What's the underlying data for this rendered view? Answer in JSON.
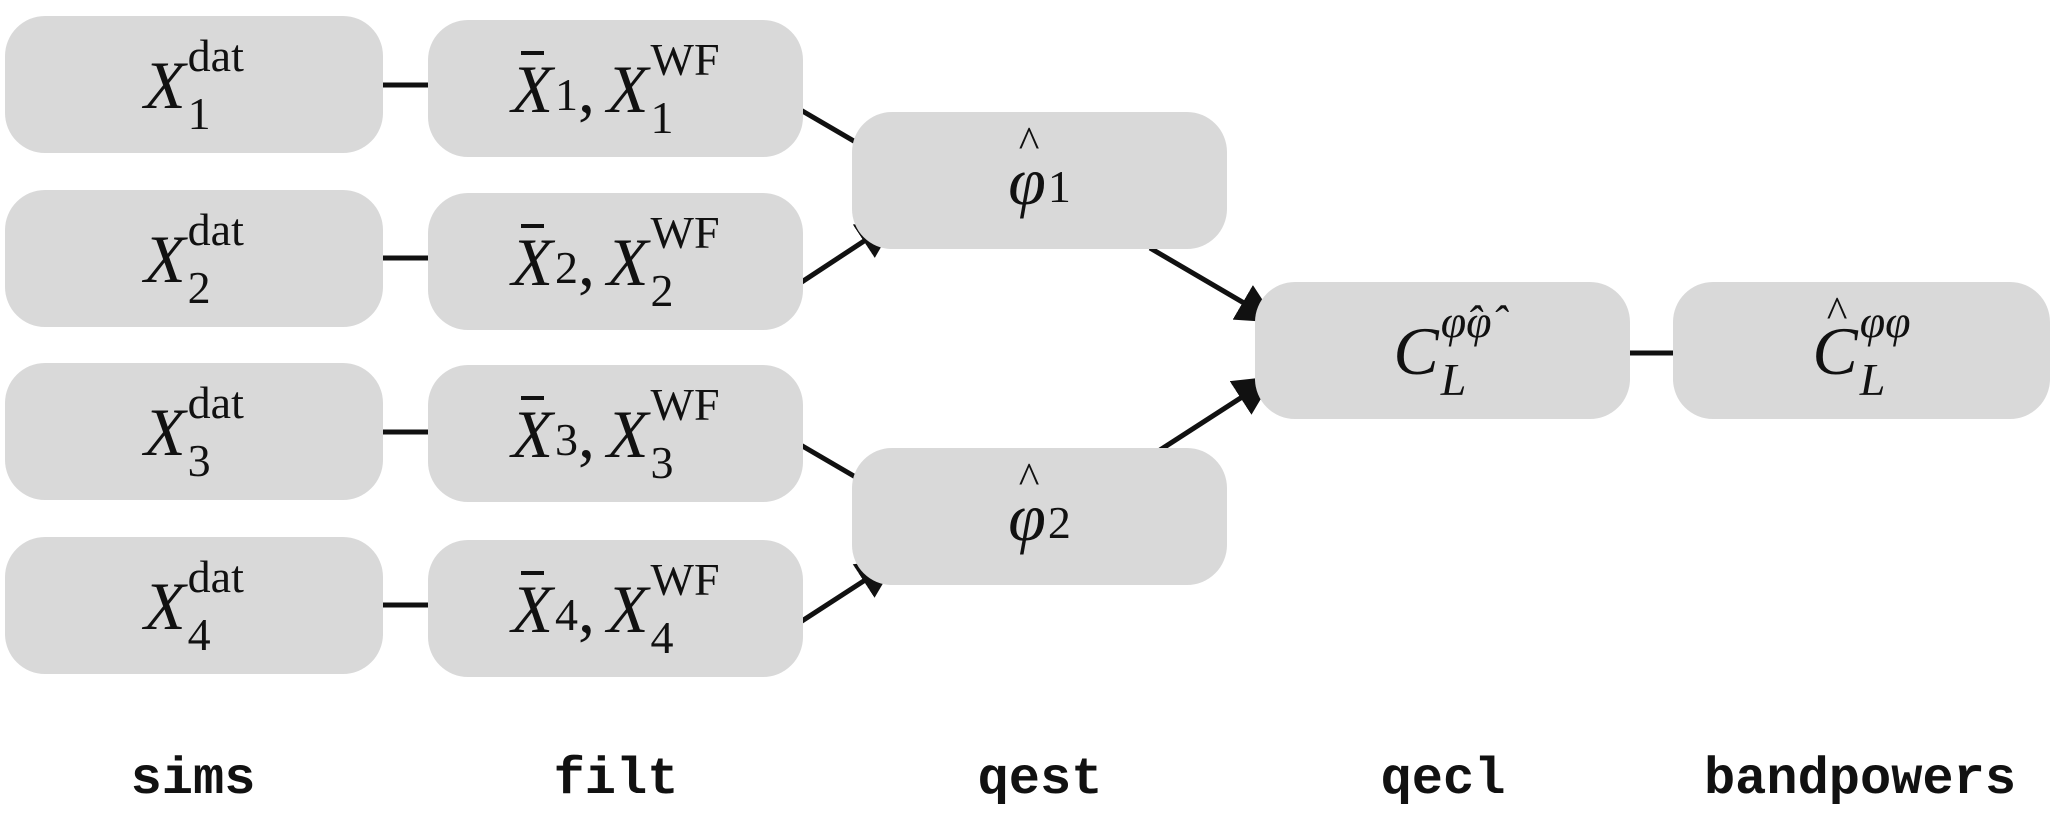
{
  "nodes": {
    "sims_1": {
      "base": "X",
      "sub": "1",
      "sup": "dat"
    },
    "sims_2": {
      "base": "X",
      "sub": "2",
      "sup": "dat"
    },
    "sims_3": {
      "base": "X",
      "sub": "3",
      "sup": "dat"
    },
    "sims_4": {
      "base": "X",
      "sub": "4",
      "sup": "dat"
    },
    "filt_1": {
      "bar_base": "X",
      "bar_sub": "1",
      "sep": ",",
      "base": "X",
      "sub": "1",
      "sup": "WF"
    },
    "filt_2": {
      "bar_base": "X",
      "bar_sub": "2",
      "sep": ",",
      "base": "X",
      "sub": "2",
      "sup": "WF"
    },
    "filt_3": {
      "bar_base": "X",
      "bar_sub": "3",
      "sep": ",",
      "base": "X",
      "sub": "3",
      "sup": "WF"
    },
    "filt_4": {
      "bar_base": "X",
      "bar_sub": "4",
      "sep": ",",
      "base": "X",
      "sub": "4",
      "sup": "WF"
    },
    "qest_1": {
      "base": "φ",
      "sub": "1"
    },
    "qest_2": {
      "base": "φ",
      "sub": "2"
    },
    "qecl": {
      "base": "C",
      "sub": "L",
      "sup": "φ̂φ̂"
    },
    "bandpowers": {
      "base": "C",
      "sub": "L",
      "sup": "φφ"
    }
  },
  "columns": {
    "sims": "sims",
    "filt": "filt",
    "qest": "qest",
    "qecl": "qecl",
    "bandpowers": "bandpowers"
  },
  "colors": {
    "node_fill": "#d9d9d9",
    "arrow": "#111111",
    "text": "#111111"
  }
}
